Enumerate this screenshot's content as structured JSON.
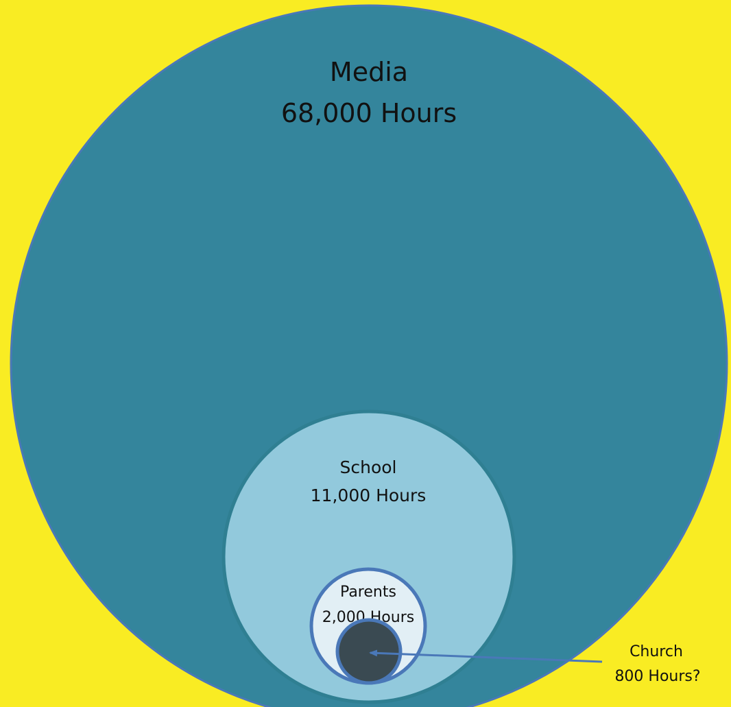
{
  "diagram": {
    "nodes": [
      {
        "id": "media",
        "label": "Media",
        "value_text": "68,000 Hours",
        "hours": 68000,
        "color": "#34859c",
        "stroke": "#4a78b8"
      },
      {
        "id": "school",
        "label": "School",
        "value_text": "11,000 Hours",
        "hours": 11000,
        "color": "#92c9dc",
        "stroke": "#2f7f92"
      },
      {
        "id": "parents",
        "label": "Parents",
        "value_text": "2,000 Hours",
        "hours": 2000,
        "color": "#e2eff5",
        "stroke": "#4a78b8"
      },
      {
        "id": "church",
        "label": "Church",
        "value_text": "800 Hours?",
        "hours": 800,
        "color": "#3a4a52",
        "stroke": "#4a78b8"
      }
    ],
    "colors": {
      "background": "#f9ec23",
      "arrow": "#4a78b8"
    }
  }
}
